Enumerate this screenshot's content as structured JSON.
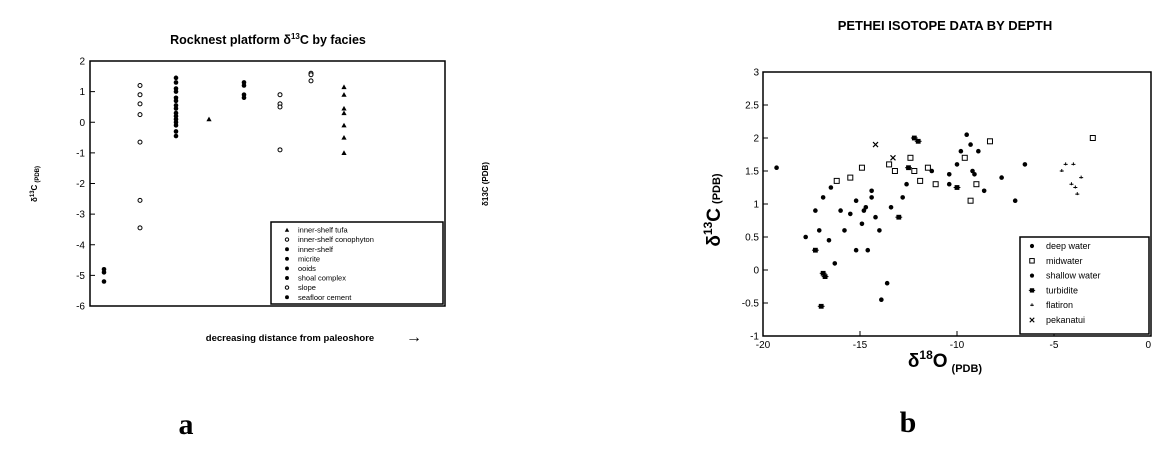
{
  "chart_data": [
    {
      "panel_label": "a",
      "type": "scatter",
      "title": "Rocknest platform δ13C by facies",
      "title_parts": {
        "pre": "Rocknest platform δ",
        "sup": "13",
        "post": "C by facies"
      },
      "ylabel": "δ13C (PDB)",
      "ylabel_parts": {
        "pre": "δ",
        "sup": "13",
        "post": "C",
        "sub": "(PDB)"
      },
      "right_label": "δ13C (PDB)",
      "xlabel": "decreasing distance from paleoshore",
      "xlabel_arrow": "→",
      "ylim": [
        -6,
        2
      ],
      "yticks": [
        "2",
        "1",
        "0",
        "-1",
        "-2",
        "-3",
        "-4",
        "-5",
        "-6"
      ],
      "x_categorical": true,
      "legend": {
        "position": "bottom-right",
        "entries": [
          {
            "label": "inner-shelf tufa",
            "marker": "triangle"
          },
          {
            "label": "inner-shelf conophyton",
            "marker": "open-circle"
          },
          {
            "label": "inner-shelf",
            "marker": "dot"
          },
          {
            "label": "micrite",
            "marker": "dot"
          },
          {
            "label": "ooids",
            "marker": "dot"
          },
          {
            "label": "shoal complex",
            "marker": "dot"
          },
          {
            "label": "slope",
            "marker": "open-circle"
          },
          {
            "label": "seafloor cement",
            "marker": "dot"
          }
        ]
      },
      "series": [
        {
          "group": 1,
          "marker": "dot",
          "y": [
            -4.8,
            -4.9,
            -5.2
          ]
        },
        {
          "group": 2,
          "marker": "open-circle",
          "y": [
            1.2,
            0.9,
            0.6,
            0.25,
            -0.65,
            -2.55,
            -3.45
          ]
        },
        {
          "group": 3,
          "marker": "dot",
          "y": [
            1.45,
            1.3,
            1.1,
            1.0,
            0.8,
            0.7,
            0.55,
            0.45,
            0.3,
            0.2,
            0.1,
            0.0,
            -0.1,
            -0.3,
            -0.45
          ]
        },
        {
          "group": 4,
          "marker": "triangle",
          "y": [
            0.1
          ]
        },
        {
          "group": 5,
          "marker": "dot",
          "y": [
            1.3,
            1.2,
            0.9,
            0.8
          ]
        },
        {
          "group": 6,
          "marker": "open-circle",
          "y": [
            0.9,
            0.6,
            0.5,
            -0.9
          ]
        },
        {
          "group": 7,
          "marker": "open-circle",
          "y": [
            1.6,
            1.55,
            1.35
          ]
        },
        {
          "group": 8,
          "marker": "triangle",
          "y": [
            1.15,
            0.9,
            0.45,
            0.3,
            -0.1,
            -0.5,
            -1.0
          ]
        }
      ]
    },
    {
      "panel_label": "b",
      "type": "scatter",
      "title": "PETHEI ISOTOPE DATA BY DEPTH",
      "xlabel": "δ18O (PDB)",
      "xlabel_parts": {
        "pre": "δ",
        "sup": "18",
        "post": "O",
        "sub": "(PDB)"
      },
      "ylabel": "δ13C (PDB)",
      "ylabel_parts": {
        "pre": "δ",
        "sup": "13",
        "post": "C",
        "sub": "(PDB)"
      },
      "xlim": [
        -20,
        0
      ],
      "ylim": [
        -1,
        3
      ],
      "xticks": [
        -20,
        -15,
        -10,
        -5,
        0
      ],
      "xtick_labels": [
        "-20",
        "-15",
        "-10",
        "-5",
        "0"
      ],
      "yticks": [
        -1,
        -0.5,
        0,
        0.5,
        1,
        1.5,
        2,
        2.5,
        3
      ],
      "ytick_labels": [
        "-1",
        "-0.5",
        "0",
        "0.5",
        "1",
        "1.5",
        "2",
        "2.5",
        "3"
      ],
      "legend": {
        "position": "bottom-right"
      },
      "series": [
        {
          "name": "deep water",
          "marker": "dot",
          "points": [
            [
              -19.3,
              1.55
            ],
            [
              -17.8,
              0.5
            ],
            [
              -16.9,
              1.1
            ],
            [
              -16.5,
              1.25
            ],
            [
              -16.0,
              0.9
            ],
            [
              -15.8,
              0.6
            ],
            [
              -15.5,
              0.85
            ],
            [
              -15.2,
              1.05
            ],
            [
              -14.8,
              0.9
            ],
            [
              -14.6,
              0.3
            ],
            [
              -14.4,
              1.2
            ],
            [
              -12.0,
              1.95
            ],
            [
              -11.3,
              1.5
            ],
            [
              -10.4,
              1.3
            ],
            [
              -9.8,
              1.8
            ],
            [
              -9.2,
              1.5
            ],
            [
              -8.6,
              1.2
            ],
            [
              -7.7,
              1.4
            ],
            [
              -7.0,
              1.05
            ],
            [
              -6.5,
              1.6
            ]
          ]
        },
        {
          "name": "midwater",
          "marker": "square",
          "points": [
            [
              -16.2,
              1.35
            ],
            [
              -15.5,
              1.4
            ],
            [
              -14.9,
              1.55
            ],
            [
              -13.5,
              1.6
            ],
            [
              -13.2,
              1.5
            ],
            [
              -12.4,
              1.7
            ],
            [
              -12.2,
              1.5
            ],
            [
              -11.9,
              1.35
            ],
            [
              -11.5,
              1.55
            ],
            [
              -11.1,
              1.3
            ],
            [
              -9.6,
              1.7
            ],
            [
              -9.3,
              1.05
            ],
            [
              -9.0,
              1.3
            ],
            [
              -8.3,
              1.95
            ],
            [
              -3.0,
              2.0
            ]
          ]
        },
        {
          "name": "shallow water",
          "marker": "dot",
          "points": [
            [
              -17.3,
              0.9
            ],
            [
              -17.1,
              0.6
            ],
            [
              -16.6,
              0.45
            ],
            [
              -16.3,
              0.1
            ],
            [
              -15.2,
              0.3
            ],
            [
              -14.9,
              0.7
            ],
            [
              -14.7,
              0.95
            ],
            [
              -14.4,
              1.1
            ],
            [
              -14.2,
              0.8
            ],
            [
              -14.0,
              0.6
            ],
            [
              -13.9,
              -0.45
            ],
            [
              -13.6,
              -0.2
            ],
            [
              -13.4,
              0.95
            ],
            [
              -12.8,
              1.1
            ],
            [
              -12.6,
              1.3
            ],
            [
              -10.4,
              1.45
            ],
            [
              -10.0,
              1.6
            ],
            [
              -9.5,
              2.05
            ],
            [
              -9.3,
              1.9
            ],
            [
              -9.1,
              1.45
            ],
            [
              -8.9,
              1.8
            ]
          ]
        },
        {
          "name": "turbidite",
          "marker": "square-cross",
          "points": [
            [
              -17.3,
              0.3
            ],
            [
              -17.0,
              -0.55
            ],
            [
              -16.9,
              -0.05
            ],
            [
              -16.8,
              -0.1
            ],
            [
              -13.0,
              0.8
            ],
            [
              -12.5,
              1.55
            ],
            [
              -12.2,
              2.0
            ],
            [
              -12.0,
              1.95
            ],
            [
              -10.0,
              1.25
            ]
          ]
        },
        {
          "name": "flatiron",
          "marker": "small-tick",
          "points": [
            [
              -4.6,
              1.5
            ],
            [
              -4.4,
              1.6
            ],
            [
              -4.1,
              1.3
            ],
            [
              -4.0,
              1.6
            ],
            [
              -3.9,
              1.25
            ],
            [
              -3.8,
              1.15
            ],
            [
              -3.6,
              1.4
            ]
          ]
        },
        {
          "name": "pekanatui",
          "marker": "cross",
          "points": [
            [
              -14.2,
              1.9
            ],
            [
              -13.3,
              1.7
            ]
          ]
        }
      ]
    }
  ]
}
